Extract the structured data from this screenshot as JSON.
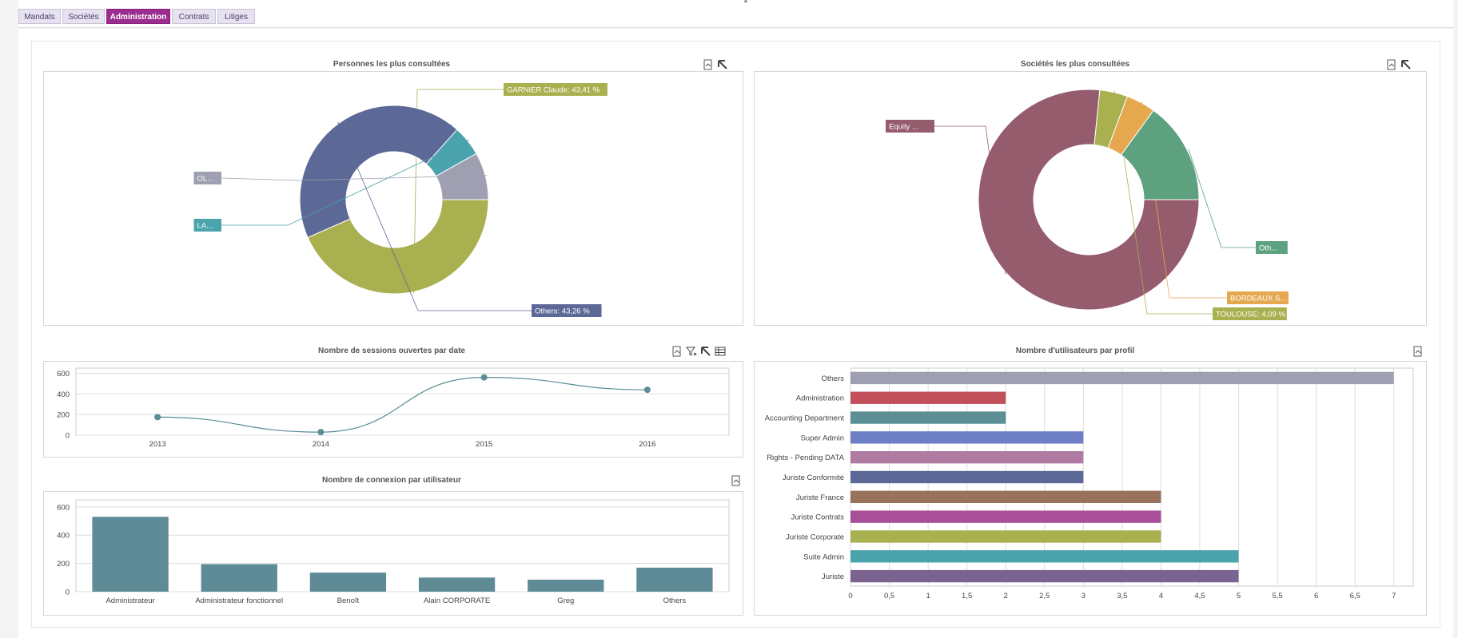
{
  "tabs": [
    {
      "label": "Mandats",
      "active": false
    },
    {
      "label": "Sociétés",
      "active": false
    },
    {
      "label": "Administration",
      "active": true
    },
    {
      "label": "Contrats",
      "active": false
    },
    {
      "label": "Litiges",
      "active": false
    }
  ],
  "panels": {
    "persons": {
      "title": "Personnes les plus consultées"
    },
    "companies": {
      "title": "Sociétés les plus consultées"
    },
    "sessions": {
      "title": "Nombre de sessions ouvertes par date"
    },
    "profiles": {
      "title": "Nombre d'utilisateurs par profil"
    },
    "connections": {
      "title": "Nombre de connexion par utilisateur"
    }
  },
  "toolbar_icons": {
    "export": "export-icon",
    "zoom_out": "zoom-out-icon",
    "filter": "filter-clear-icon",
    "table": "table-view-icon"
  },
  "chart_data": [
    {
      "id": "persons",
      "type": "pie",
      "title": "Personnes les plus consultées",
      "slices": [
        {
          "label": "GARNIER Claude: 43,41 %",
          "value": 43.41,
          "color": "#a8b050"
        },
        {
          "label": "Others: 43,26 %",
          "value": 43.26,
          "color": "#5c6996"
        },
        {
          "label": "LA...",
          "value": 5.2,
          "color": "#4aa3ad"
        },
        {
          "label": "OL...",
          "value": 8.13,
          "color": "#9ea0b1"
        }
      ]
    },
    {
      "id": "companies",
      "type": "pie",
      "title": "Sociétés les plus consultées",
      "slices": [
        {
          "label": "Equity ...",
          "value": 76.6,
          "color": "#955c6e"
        },
        {
          "label": "TOULOUSE: 4,09 %",
          "value": 4.09,
          "color": "#a8b050"
        },
        {
          "label": "BORDEAUX S...",
          "value": 4.3,
          "color": "#e6a84f"
        },
        {
          "label": "Oth...",
          "value": 15.0,
          "color": "#5da17f"
        }
      ]
    },
    {
      "id": "sessions",
      "type": "line",
      "title": "Nombre de sessions ouvertes par date",
      "categories": [
        "2013",
        "2014",
        "2015",
        "2016"
      ],
      "values": [
        175,
        30,
        560,
        440
      ],
      "ylim": [
        0,
        650
      ],
      "yticks": [
        "0",
        "200",
        "400",
        "600"
      ],
      "color": "#5a8d95",
      "grid": true
    },
    {
      "id": "connections",
      "type": "bar",
      "title": "Nombre de connexion par utilisateur",
      "categories": [
        "Administrateur",
        "Administrateur fonctionnel",
        "Benoît",
        "Alain CORPORATE",
        "Greg",
        "Others"
      ],
      "values": [
        530,
        195,
        135,
        100,
        85,
        170
      ],
      "ylim": [
        0,
        650
      ],
      "yticks": [
        "0",
        "200",
        "400",
        "600"
      ],
      "color": "#5e8b96",
      "grid": true
    },
    {
      "id": "profiles",
      "type": "bar",
      "orientation": "horizontal",
      "title": "Nombre d'utilisateurs par profil",
      "categories": [
        "Others",
        "Administration",
        "Accounting Department",
        "Super Admin",
        "Rights - Pending DATA",
        "Juriste Conformité",
        "Juriste France",
        "Juriste Contrats",
        "Juriste Corporate",
        "Suite Admin",
        "Juriste"
      ],
      "values": [
        7,
        2,
        2,
        3,
        3,
        3,
        4,
        4,
        4,
        5,
        5
      ],
      "colors": [
        "#9ea0b1",
        "#c1505a",
        "#5b8e95",
        "#6d7fc4",
        "#b07aa3",
        "#5c6996",
        "#98725b",
        "#a94f99",
        "#a8b050",
        "#4aa3ad",
        "#7a6391"
      ],
      "xlim": [
        0,
        7.25
      ],
      "xticks": [
        "0",
        "0,5",
        "1",
        "1,5",
        "2",
        "2,5",
        "3",
        "3,5",
        "4",
        "4,5",
        "5",
        "5,5",
        "6",
        "6,5",
        "7"
      ],
      "grid": true
    }
  ]
}
